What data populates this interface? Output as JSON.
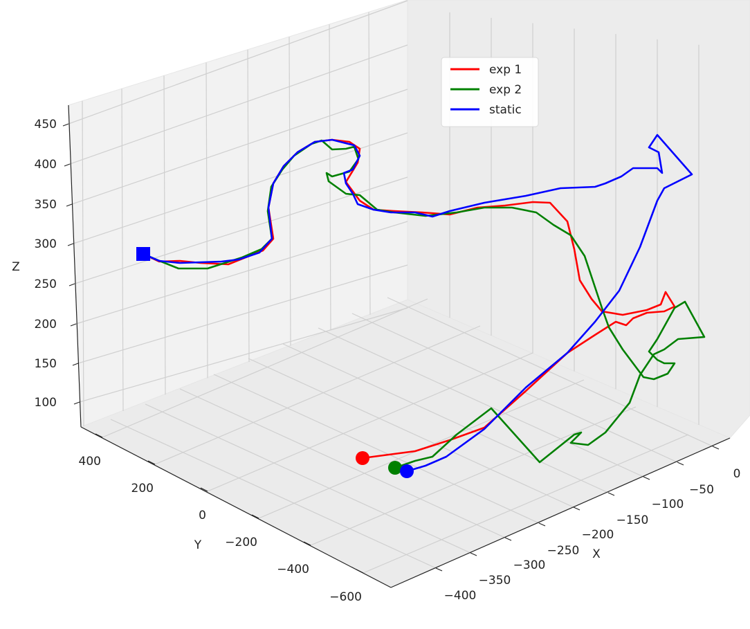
{
  "chart_data": {
    "type": "line",
    "projection": "3d",
    "xlabel": "X",
    "ylabel": "Y",
    "zlabel": "Z",
    "xlim": [
      -400,
      0
    ],
    "ylim": [
      -600,
      450
    ],
    "zlim": [
      70,
      470
    ],
    "x_ticks": [
      "0",
      "−50",
      "−100",
      "−150",
      "−200",
      "−250",
      "−300",
      "−350",
      "−400"
    ],
    "y_ticks": [
      "400",
      "200",
      "0",
      "−200",
      "−400",
      "−600"
    ],
    "z_ticks": [
      "450",
      "400",
      "350",
      "300",
      "250",
      "200",
      "150",
      "100"
    ],
    "grid": true,
    "legend_position": "upper-center",
    "series": [
      {
        "name": "exp 1",
        "color": "#ff0000",
        "start_marker": "circle",
        "end_marker": "square"
      },
      {
        "name": "exp 2",
        "color": "#008000",
        "start_marker": "circle",
        "end_marker": "square"
      },
      {
        "name": "static",
        "color": "#0000ff",
        "start_marker": "circle",
        "end_marker": "square"
      }
    ]
  }
}
